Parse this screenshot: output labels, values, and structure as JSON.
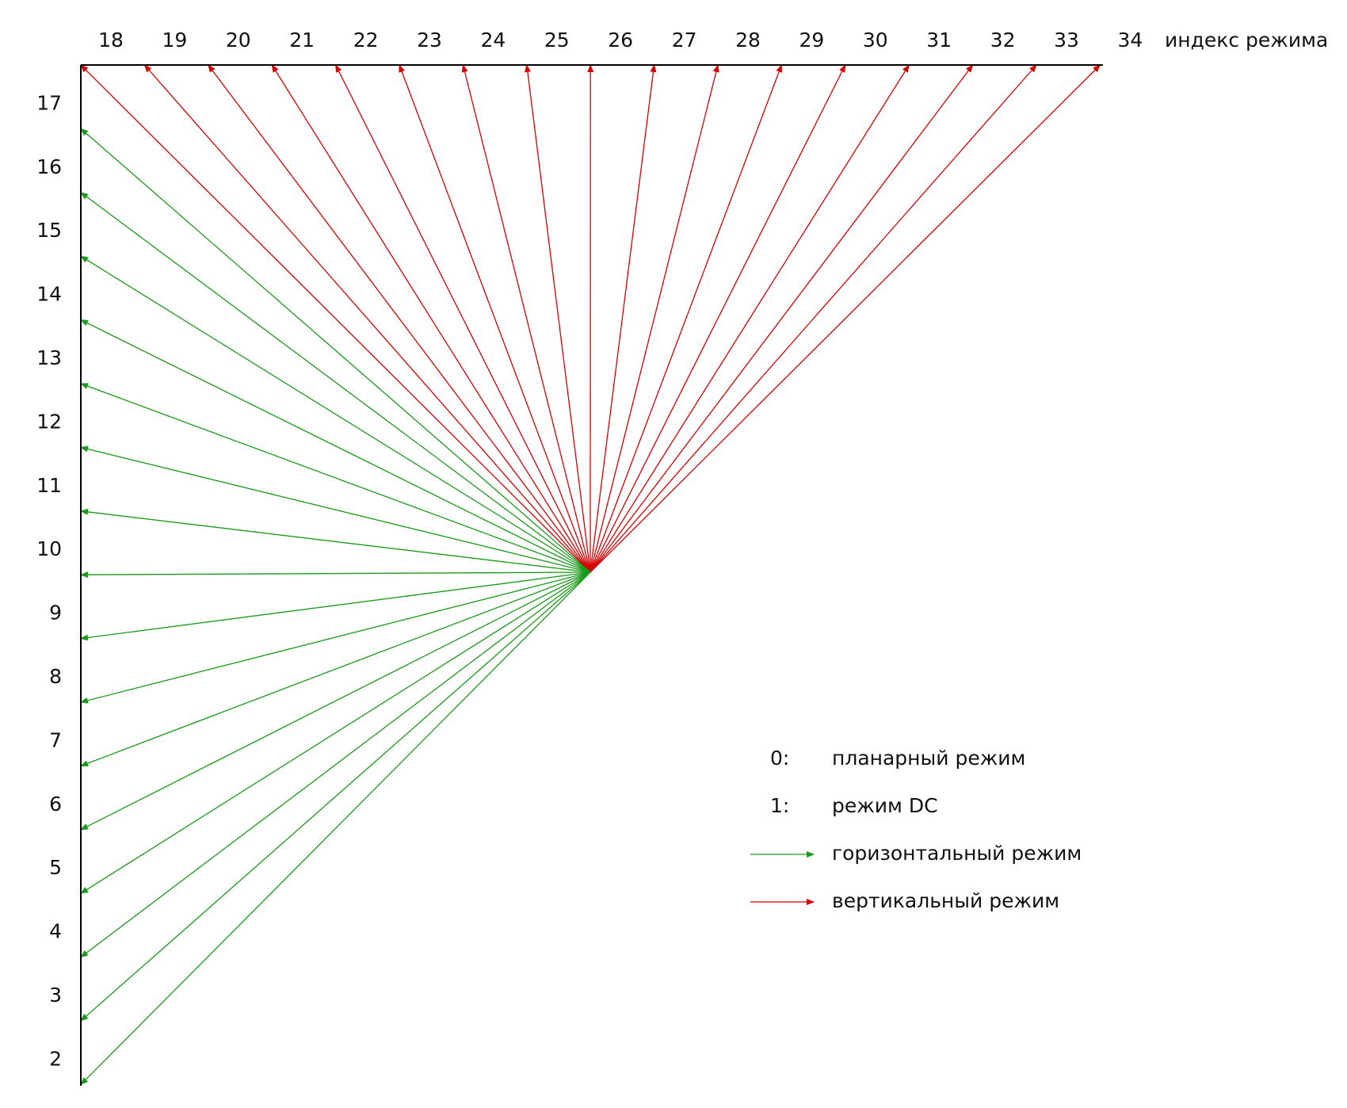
{
  "diagram": {
    "top_axis_label": "индекс режима",
    "top_modes": [
      "18",
      "19",
      "20",
      "21",
      "22",
      "23",
      "24",
      "25",
      "26",
      "27",
      "28",
      "29",
      "30",
      "31",
      "32",
      "33",
      "34"
    ],
    "left_modes": [
      "17",
      "16",
      "15",
      "14",
      "13",
      "12",
      "11",
      "10",
      "9",
      "8",
      "7",
      "6",
      "5",
      "4",
      "3",
      "2"
    ]
  },
  "legend": {
    "planar": {
      "key": "0:",
      "text": "планарный режим"
    },
    "dc": {
      "key": "1:",
      "text": "режим DC"
    },
    "horizontal": {
      "text": "горизонтальный режим",
      "color": "#1a9a1a"
    },
    "vertical": {
      "text": "вертикальный режим",
      "color": "#d40000"
    }
  },
  "colors": {
    "horizontal": "#1a9a1a",
    "vertical": "#d40000",
    "axis": "#000000"
  }
}
